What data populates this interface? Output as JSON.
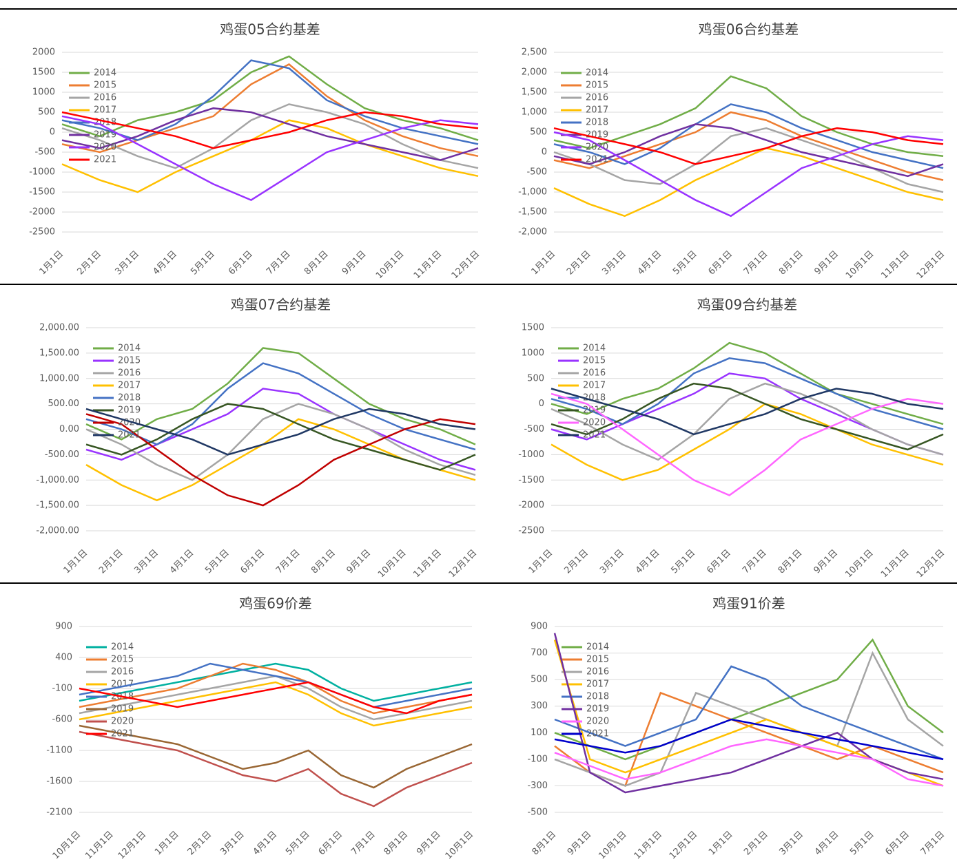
{
  "chart_data": [
    {
      "type": "line",
      "title": "鸡蛋05合约基差",
      "categories": [
        "1月1日",
        "2月1日",
        "3月1日",
        "4月1日",
        "5月1日",
        "6月1日",
        "7月1日",
        "8月1日",
        "9月1日",
        "10月1日",
        "11月1日",
        "12月1日"
      ],
      "ylim": [
        -2500,
        2000
      ],
      "yticks": [
        -2500,
        -2000,
        -1500,
        -1000,
        -500,
        0,
        500,
        1000,
        1500,
        2000
      ],
      "grid": true,
      "series": [
        {
          "name": "2014",
          "color": "#70ad47",
          "values": [
            200,
            -100,
            300,
            500,
            800,
            1500,
            1900,
            1200,
            600,
            300,
            100,
            -200
          ]
        },
        {
          "name": "2015",
          "color": "#ed7d31",
          "values": [
            -300,
            -500,
            -200,
            100,
            400,
            1200,
            1700,
            900,
            300,
            -100,
            -400,
            -600
          ]
        },
        {
          "name": "2016",
          "color": "#a5a5a5",
          "values": [
            100,
            -200,
            -600,
            -900,
            -400,
            300,
            700,
            500,
            200,
            -300,
            -700,
            -900
          ]
        },
        {
          "name": "2017",
          "color": "#ffc000",
          "values": [
            -800,
            -1200,
            -1500,
            -1000,
            -600,
            -200,
            300,
            100,
            -300,
            -600,
            -900,
            -1100
          ]
        },
        {
          "name": "2018",
          "color": "#4472c4",
          "values": [
            300,
            100,
            -200,
            200,
            900,
            1800,
            1600,
            800,
            400,
            100,
            -100,
            -300
          ]
        },
        {
          "name": "2019",
          "color": "#7030a0",
          "values": [
            -200,
            -400,
            -100,
            300,
            600,
            500,
            200,
            -100,
            -300,
            -500,
            -700,
            -400
          ]
        },
        {
          "name": "2020",
          "color": "#9933ff",
          "values": [
            400,
            200,
            -300,
            -800,
            -1300,
            -1700,
            -1100,
            -500,
            -200,
            100,
            300,
            200
          ]
        },
        {
          "name": "2021",
          "color": "#ff0000",
          "values": [
            500,
            300,
            100,
            -100,
            -400,
            -200,
            0,
            300,
            500,
            400,
            200,
            100
          ]
        }
      ]
    },
    {
      "type": "line",
      "title": "鸡蛋06合约基差",
      "categories": [
        "1月1日",
        "2月1日",
        "3月1日",
        "4月1日",
        "5月1日",
        "6月1日",
        "7月1日",
        "8月1日",
        "9月1日",
        "10月1日",
        "11月1日",
        "12月1日"
      ],
      "ylim": [
        -2000,
        2500
      ],
      "yticks": [
        {
          "value": -2000,
          "label": "-2,000"
        },
        {
          "value": -1500,
          "label": "-1,500"
        },
        {
          "value": -1000,
          "label": "-1,000"
        },
        -500,
        0,
        500,
        {
          "value": 1000,
          "label": "1,000"
        },
        {
          "value": 1500,
          "label": "1,500"
        },
        {
          "value": 2000,
          "label": "2,000"
        },
        {
          "value": 2500,
          "label": "2,500"
        }
      ],
      "grid": true,
      "series": [
        {
          "name": "2014",
          "color": "#70ad47",
          "values": [
            300,
            100,
            400,
            700,
            1100,
            1900,
            1600,
            900,
            500,
            200,
            0,
            -100
          ]
        },
        {
          "name": "2015",
          "color": "#ed7d31",
          "values": [
            -200,
            -400,
            -100,
            200,
            500,
            1000,
            800,
            400,
            100,
            -200,
            -500,
            -700
          ]
        },
        {
          "name": "2016",
          "color": "#a5a5a5",
          "values": [
            0,
            -300,
            -700,
            -800,
            -300,
            400,
            600,
            300,
            0,
            -400,
            -800,
            -1000
          ]
        },
        {
          "name": "2017",
          "color": "#ffc000",
          "values": [
            -900,
            -1300,
            -1600,
            -1200,
            -700,
            -300,
            100,
            -100,
            -400,
            -700,
            -1000,
            -1200
          ]
        },
        {
          "name": "2018",
          "color": "#4472c4",
          "values": [
            200,
            0,
            -300,
            100,
            700,
            1200,
            1000,
            600,
            300,
            0,
            -200,
            -400
          ]
        },
        {
          "name": "2019",
          "color": "#7030a0",
          "values": [
            -100,
            -300,
            0,
            400,
            700,
            600,
            300,
            0,
            -200,
            -400,
            -600,
            -300
          ]
        },
        {
          "name": "2020",
          "color": "#9933ff",
          "values": [
            500,
            300,
            -200,
            -700,
            -1200,
            -1600,
            -1000,
            -400,
            -100,
            200,
            400,
            300
          ]
        },
        {
          "name": "2021",
          "color": "#ff0000",
          "values": [
            600,
            400,
            200,
            0,
            -300,
            -100,
            100,
            400,
            600,
            500,
            300,
            200
          ]
        }
      ]
    },
    {
      "type": "line",
      "title": "鸡蛋07合约基差",
      "categories": [
        "1月1日",
        "2月1日",
        "3月1日",
        "4月1日",
        "5月1日",
        "6月1日",
        "7月1日",
        "8月1日",
        "9月1日",
        "10月1日",
        "11月1日",
        "12月1日"
      ],
      "ylim": [
        -2000,
        2000
      ],
      "yticks": [
        {
          "value": -2000,
          "label": "-2,000.00"
        },
        {
          "value": -1500,
          "label": "-1,500.00"
        },
        {
          "value": -1000,
          "label": "-1,000.00"
        },
        {
          "value": -500,
          "label": "-500.00"
        },
        {
          "value": 0,
          "label": "0.00"
        },
        {
          "value": 500,
          "label": "500.00"
        },
        {
          "value": 1000,
          "label": "1,000.00"
        },
        {
          "value": 1500,
          "label": "1,500.00"
        },
        {
          "value": 2000,
          "label": "2,000.00"
        }
      ],
      "grid": true,
      "series": [
        {
          "name": "2014",
          "color": "#70ad47",
          "values": [
            100,
            -200,
            200,
            400,
            900,
            1600,
            1500,
            1000,
            500,
            200,
            0,
            -300
          ]
        },
        {
          "name": "2015",
          "color": "#9933ff",
          "values": [
            -400,
            -600,
            -300,
            0,
            300,
            800,
            700,
            300,
            0,
            -300,
            -600,
            -800
          ]
        },
        {
          "name": "2016",
          "color": "#a5a5a5",
          "values": [
            0,
            -300,
            -700,
            -1000,
            -500,
            200,
            500,
            300,
            0,
            -400,
            -700,
            -900
          ]
        },
        {
          "name": "2017",
          "color": "#ffc000",
          "values": [
            -700,
            -1100,
            -1400,
            -1100,
            -700,
            -300,
            200,
            0,
            -300,
            -600,
            -800,
            -1000
          ]
        },
        {
          "name": "2018",
          "color": "#4472c4",
          "values": [
            200,
            0,
            -300,
            100,
            800,
            1300,
            1100,
            700,
            300,
            0,
            -200,
            -400
          ]
        },
        {
          "name": "2019",
          "color": "#375623",
          "values": [
            -300,
            -500,
            -200,
            200,
            500,
            400,
            100,
            -200,
            -400,
            -600,
            -800,
            -500
          ]
        },
        {
          "name": "2020",
          "color": "#c00000",
          "values": [
            300,
            100,
            -400,
            -900,
            -1300,
            -1500,
            -1100,
            -600,
            -300,
            0,
            200,
            100
          ]
        },
        {
          "name": "2021",
          "color": "#203864",
          "values": [
            400,
            200,
            0,
            -200,
            -500,
            -300,
            -100,
            200,
            400,
            300,
            100,
            0
          ]
        }
      ]
    },
    {
      "type": "line",
      "title": "鸡蛋09合约基差",
      "categories": [
        "1月1日",
        "2月1日",
        "3月1日",
        "4月1日",
        "5月1日",
        "6月1日",
        "7月1日",
        "8月1日",
        "9月1日",
        "10月1日",
        "11月1日",
        "12月1日"
      ],
      "ylim": [
        -2500,
        1500
      ],
      "yticks": [
        -2500,
        -2000,
        -1500,
        -1000,
        -500,
        0,
        500,
        1000,
        1500
      ],
      "grid": true,
      "series": [
        {
          "name": "2014",
          "color": "#70ad47",
          "values": [
            0,
            -200,
            100,
            300,
            700,
            1200,
            1000,
            600,
            200,
            0,
            -200,
            -400
          ]
        },
        {
          "name": "2015",
          "color": "#9933ff",
          "values": [
            -500,
            -700,
            -400,
            -100,
            200,
            600,
            500,
            100,
            -200,
            -500,
            -800,
            -1000
          ]
        },
        {
          "name": "2016",
          "color": "#a5a5a5",
          "values": [
            -100,
            -400,
            -800,
            -1100,
            -600,
            100,
            400,
            200,
            -100,
            -500,
            -800,
            -1000
          ]
        },
        {
          "name": "2017",
          "color": "#ffc000",
          "values": [
            -800,
            -1200,
            -1500,
            -1300,
            -900,
            -500,
            0,
            -200,
            -500,
            -800,
            -1000,
            -1200
          ]
        },
        {
          "name": "2018",
          "color": "#4472c4",
          "values": [
            100,
            -100,
            -400,
            0,
            600,
            900,
            800,
            500,
            200,
            -100,
            -300,
            -500
          ]
        },
        {
          "name": "2019",
          "color": "#375623",
          "values": [
            -400,
            -600,
            -300,
            100,
            400,
            300,
            0,
            -300,
            -500,
            -700,
            -900,
            -600
          ]
        },
        {
          "name": "2020",
          "color": "#ff66ff",
          "values": [
            200,
            0,
            -500,
            -1000,
            -1500,
            -1800,
            -1300,
            -700,
            -400,
            -100,
            100,
            0
          ]
        },
        {
          "name": "2021",
          "color": "#203864",
          "values": [
            300,
            100,
            -100,
            -300,
            -600,
            -400,
            -200,
            100,
            300,
            200,
            0,
            -100
          ]
        }
      ]
    },
    {
      "type": "line",
      "title": "鸡蛋69价差",
      "categories": [
        "10月1日",
        "11月1日",
        "12月1日",
        "1月1日",
        "2月1日",
        "3月1日",
        "4月1日",
        "5月1日",
        "6月1日",
        "7月1日",
        "8月1日",
        "9月1日",
        "10月1日"
      ],
      "ylim": [
        -2100,
        900
      ],
      "yticks": [
        -2100,
        -1600,
        -1100,
        -600,
        -100,
        400,
        900
      ],
      "grid": true,
      "series": [
        {
          "name": "2014",
          "color": "#00b0a0",
          "values": [
            -300,
            -200,
            -100,
            0,
            100,
            200,
            300,
            200,
            -100,
            -300,
            -200,
            -100,
            0
          ]
        },
        {
          "name": "2015",
          "color": "#ed7d31",
          "values": [
            -400,
            -300,
            -200,
            -100,
            100,
            300,
            200,
            0,
            -300,
            -500,
            -400,
            -300,
            -200
          ]
        },
        {
          "name": "2016",
          "color": "#a5a5a5",
          "values": [
            -500,
            -400,
            -300,
            -200,
            -100,
            0,
            100,
            -100,
            -400,
            -600,
            -500,
            -400,
            -300
          ]
        },
        {
          "name": "2017",
          "color": "#ffc000",
          "values": [
            -600,
            -500,
            -400,
            -300,
            -200,
            -100,
            0,
            -200,
            -500,
            -700,
            -600,
            -500,
            -400
          ]
        },
        {
          "name": "2018",
          "color": "#4472c4",
          "values": [
            -200,
            -100,
            0,
            100,
            300,
            200,
            100,
            0,
            -200,
            -400,
            -300,
            -200,
            -100
          ]
        },
        {
          "name": "2019",
          "color": "#996633",
          "values": [
            -700,
            -800,
            -900,
            -1000,
            -1200,
            -1400,
            -1300,
            -1100,
            -1500,
            -1700,
            -1400,
            -1200,
            -1000
          ]
        },
        {
          "name": "2020",
          "color": "#c0504d",
          "values": [
            -800,
            -900,
            -1000,
            -1100,
            -1300,
            -1500,
            -1600,
            -1400,
            -1800,
            -2000,
            -1700,
            -1500,
            -1300
          ]
        },
        {
          "name": "2021",
          "color": "#ff0000",
          "values": [
            -100,
            -200,
            -300,
            -400,
            -300,
            -200,
            -100,
            0,
            -200,
            -400,
            -500,
            -300,
            -200
          ]
        }
      ]
    },
    {
      "type": "line",
      "title": "鸡蛋91价差",
      "categories": [
        "8月1日",
        "9月1日",
        "10月1日",
        "11月1日",
        "12月1日",
        "1月1日",
        "2月1日",
        "3月1日",
        "4月1日",
        "5月1日",
        "6月1日",
        "7月1日"
      ],
      "ylim": [
        -500,
        900
      ],
      "yticks": [
        -500,
        -300,
        -100,
        100,
        300,
        500,
        700,
        900
      ],
      "grid": true,
      "series": [
        {
          "name": "2014",
          "color": "#70ad47",
          "values": [
            100,
            0,
            -100,
            0,
            100,
            200,
            300,
            400,
            500,
            800,
            300,
            100
          ]
        },
        {
          "name": "2015",
          "color": "#ed7d31",
          "values": [
            0,
            -200,
            -300,
            400,
            300,
            200,
            100,
            0,
            -100,
            0,
            -100,
            -200
          ]
        },
        {
          "name": "2016",
          "color": "#a5a5a5",
          "values": [
            -100,
            -200,
            -300,
            -200,
            400,
            300,
            200,
            100,
            0,
            700,
            200,
            0
          ]
        },
        {
          "name": "2017",
          "color": "#ffc000",
          "values": [
            800,
            -100,
            -200,
            -100,
            0,
            100,
            200,
            100,
            0,
            -100,
            -200,
            -300
          ]
        },
        {
          "name": "2018",
          "color": "#4472c4",
          "values": [
            200,
            100,
            0,
            100,
            200,
            600,
            500,
            300,
            200,
            100,
            0,
            -100
          ]
        },
        {
          "name": "2019",
          "color": "#7030a0",
          "values": [
            850,
            -200,
            -350,
            -300,
            -250,
            -200,
            -100,
            0,
            100,
            -100,
            -200,
            -250
          ]
        },
        {
          "name": "2020",
          "color": "#ff66ff",
          "values": [
            -50,
            -150,
            -250,
            -200,
            -100,
            0,
            50,
            0,
            -50,
            -100,
            -250,
            -300
          ]
        },
        {
          "name": "2021",
          "color": "#0000cc",
          "values": [
            50,
            0,
            -50,
            0,
            100,
            200,
            150,
            100,
            50,
            0,
            -50,
            -100
          ]
        }
      ]
    }
  ]
}
